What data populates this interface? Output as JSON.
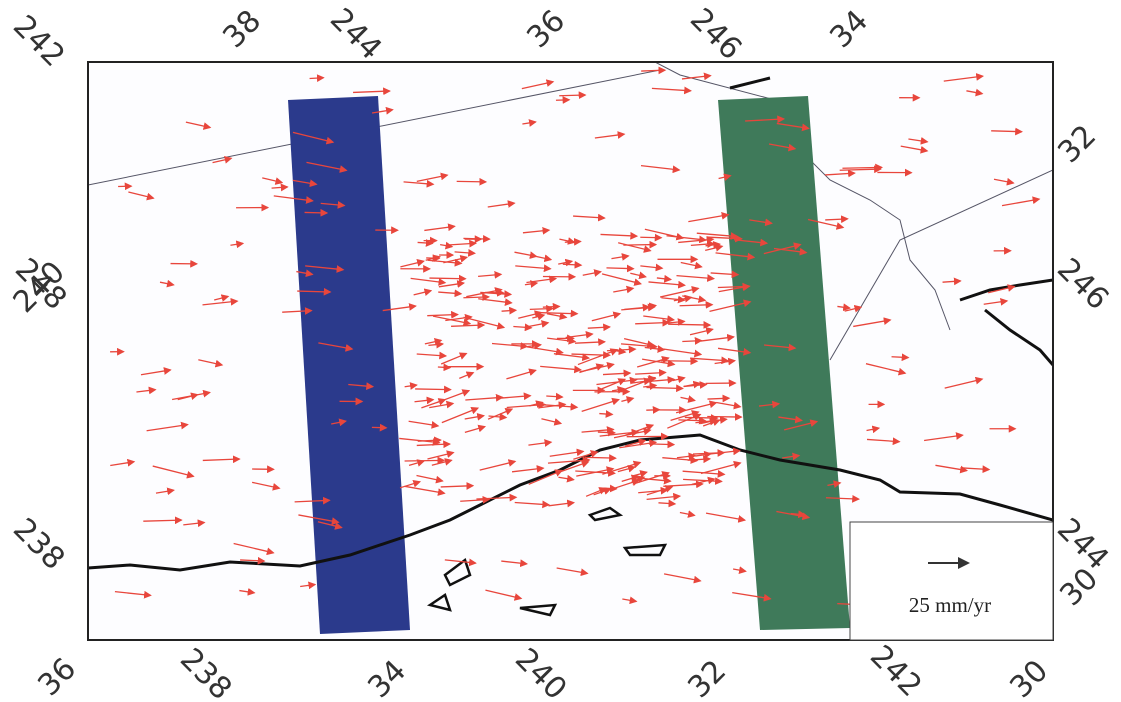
{
  "axis_labels": {
    "top": [
      "242",
      "38",
      "244",
      "36",
      "246",
      "34"
    ],
    "left": [
      "248",
      "240",
      "238"
    ],
    "right": [
      "32",
      "246",
      "244",
      "30"
    ],
    "bottom": [
      "36",
      "238",
      "34",
      "240",
      "32",
      "242",
      "30"
    ]
  },
  "legend": {
    "label": "25 mm/yr"
  }
}
